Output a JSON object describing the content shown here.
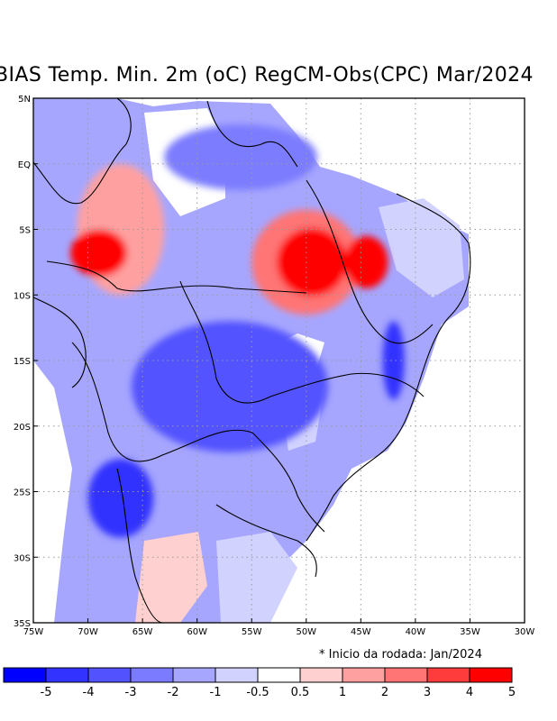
{
  "title": "BIAS Temp. Min. 2m (oC) RegCM-Obs(CPC) Mar/2024",
  "note": "* Inicio da rodada: Jan/2024",
  "map": {
    "lon_range": [
      -75,
      -30
    ],
    "lat_range": [
      -35,
      5
    ],
    "lon_ticks": [
      {
        "value": -75,
        "label": "75W"
      },
      {
        "value": -70,
        "label": "70W"
      },
      {
        "value": -65,
        "label": "65W"
      },
      {
        "value": -60,
        "label": "60W"
      },
      {
        "value": -55,
        "label": "55W"
      },
      {
        "value": -50,
        "label": "50W"
      },
      {
        "value": -45,
        "label": "45W"
      },
      {
        "value": -40,
        "label": "40W"
      },
      {
        "value": -35,
        "label": "35W"
      },
      {
        "value": -30,
        "label": "30W"
      }
    ],
    "lat_ticks": [
      {
        "value": 5,
        "label": "5N"
      },
      {
        "value": 0,
        "label": "EQ"
      },
      {
        "value": -5,
        "label": "5S"
      },
      {
        "value": -10,
        "label": "10S"
      },
      {
        "value": -15,
        "label": "15S"
      },
      {
        "value": -20,
        "label": "20S"
      },
      {
        "value": -25,
        "label": "25S"
      },
      {
        "value": -30,
        "label": "30S"
      },
      {
        "value": -35,
        "label": "35S"
      }
    ],
    "bias_regions": [
      {
        "name": "amazon-east-cool",
        "value": -2,
        "lon": -56,
        "lat": 0.5,
        "rx": 7,
        "ry": 2.5
      },
      {
        "name": "northwest-warm",
        "value": 2,
        "lon": -67,
        "lat": -5,
        "rx": 4,
        "ry": 5
      },
      {
        "name": "acre-hot",
        "value": 5,
        "lon": -69,
        "lat": -6.8,
        "rx": 2.6,
        "ry": 1.8
      },
      {
        "name": "central-north-warm",
        "value": 3,
        "lon": -50,
        "lat": -7.5,
        "rx": 5,
        "ry": 4
      },
      {
        "name": "para-hot",
        "value": 5,
        "lon": -49.5,
        "lat": -7.5,
        "rx": 3.2,
        "ry": 2.6
      },
      {
        "name": "northeast-hot",
        "value": 5,
        "lon": -44.5,
        "lat": -7.5,
        "rx": 2,
        "ry": 2
      },
      {
        "name": "center-cool",
        "value": -3,
        "lon": -57,
        "lat": -17,
        "rx": 9,
        "ry": 5
      },
      {
        "name": "south-cool",
        "value": -4,
        "lon": -67,
        "lat": -25.5,
        "rx": 3,
        "ry": 3
      },
      {
        "name": "east-coast-cool",
        "value": -4,
        "lon": -42,
        "lat": -15,
        "rx": 1,
        "ry": 3
      }
    ]
  },
  "legend": {
    "colors": [
      "#0000ff",
      "#3333ff",
      "#5252ff",
      "#7b7bff",
      "#a6a6ff",
      "#d2d2ff",
      "#ffffff",
      "#ffd0d0",
      "#ffa0a0",
      "#ff7575",
      "#ff3c3c",
      "#ff0000"
    ],
    "labels": [
      "-5",
      "-4",
      "-3",
      "-2",
      "-1",
      "-0.5",
      "0.5",
      "1",
      "2",
      "3",
      "4",
      "5"
    ]
  }
}
